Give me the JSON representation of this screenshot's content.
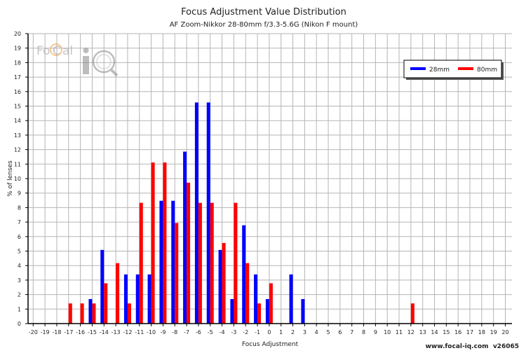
{
  "chart_data": {
    "type": "bar",
    "title": "Focus Adjustment Value Distribution",
    "subtitle": "AF Zoom-Nikkor 28-80mm f/3.3-5.6G (Nikon F mount)",
    "xlabel": "Focus Adjustment",
    "ylabel": "% of lenses",
    "xlim": [
      -20,
      20
    ],
    "ylim": [
      0,
      20
    ],
    "grid": true,
    "legend_position": "top-right",
    "x": [
      -20,
      -19,
      -18,
      -17,
      -16,
      -15,
      -14,
      -13,
      -12,
      -11,
      -10,
      -9,
      -8,
      -7,
      -6,
      -5,
      -4,
      -3,
      -2,
      -1,
      0,
      1,
      2,
      3,
      4,
      5,
      6,
      7,
      8,
      9,
      10,
      11,
      12,
      13,
      14,
      15,
      16,
      17,
      18,
      19,
      20
    ],
    "series": [
      {
        "name": "28mm",
        "color": "#0000ff",
        "values": [
          0,
          0,
          0,
          0,
          0,
          1.69,
          5.08,
          0,
          3.39,
          3.39,
          3.39,
          8.47,
          8.47,
          11.86,
          15.25,
          15.25,
          5.08,
          1.69,
          6.78,
          3.39,
          1.69,
          0,
          3.39,
          1.69,
          0,
          0,
          0,
          0,
          0,
          0,
          0,
          0,
          0,
          0,
          0,
          0,
          0,
          0,
          0,
          0,
          0
        ]
      },
      {
        "name": "80mm",
        "color": "#ff0000",
        "values": [
          0,
          0,
          0,
          1.39,
          1.39,
          1.39,
          2.78,
          4.17,
          1.39,
          8.33,
          11.11,
          11.11,
          6.94,
          9.72,
          8.33,
          8.33,
          5.56,
          8.33,
          4.17,
          1.39,
          2.78,
          0,
          0,
          0,
          0,
          0,
          0,
          0,
          0,
          0,
          0,
          0,
          1.39,
          0,
          0,
          0,
          0,
          0,
          0,
          0,
          0
        ]
      }
    ]
  },
  "logo": {
    "text": "FoCal iQ"
  },
  "footer": "www.focal-iq.com  v26065"
}
